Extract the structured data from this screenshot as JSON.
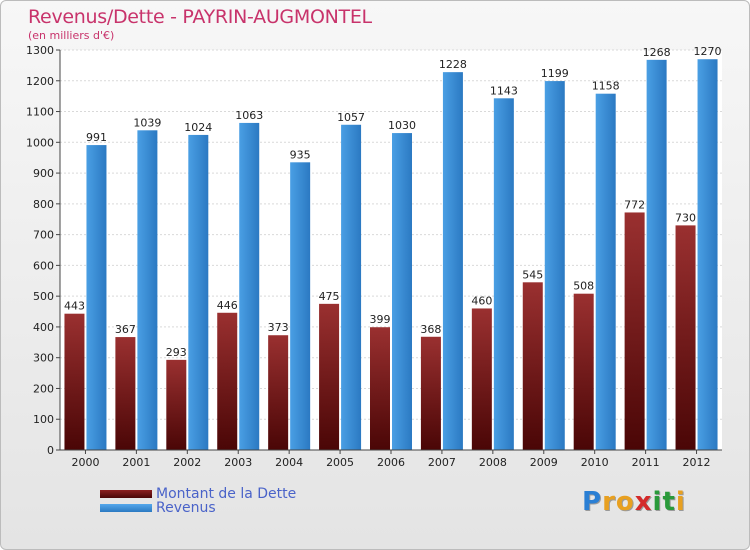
{
  "title": "Revenus/Dette - PAYRIN-AUGMONTEL",
  "subtitle": "(en milliers d'€)",
  "chart_data": {
    "type": "bar",
    "categories": [
      "2000",
      "2001",
      "2002",
      "2003",
      "2004",
      "2005",
      "2006",
      "2007",
      "2008",
      "2009",
      "2010",
      "2011",
      "2012"
    ],
    "series": [
      {
        "name": "Montant de la Dette",
        "values": [
          443,
          367,
          293,
          446,
          373,
          475,
          399,
          368,
          460,
          545,
          508,
          772,
          730
        ],
        "color": "#8b1e1e"
      },
      {
        "name": "Revenus",
        "values": [
          991,
          1039,
          1024,
          1063,
          935,
          1057,
          1030,
          1228,
          1143,
          1199,
          1158,
          1268,
          1270
        ],
        "color": "#3d8fd6"
      }
    ],
    "yticks": [
      0,
      100,
      200,
      300,
      400,
      500,
      600,
      700,
      800,
      900,
      1000,
      1100,
      1200,
      1300
    ],
    "ylim": [
      0,
      1300
    ],
    "grid": true,
    "legend_position": "bottom-left"
  },
  "legend": [
    {
      "label": "Montant de la Dette",
      "color": "#7a1414"
    },
    {
      "label": "Revenus",
      "color": "#3d8fd6"
    }
  ],
  "logo": {
    "letters": [
      "P",
      "r",
      "o",
      "x",
      "i",
      "t",
      "i"
    ],
    "colors": [
      "#2a7fd4",
      "#e8a020",
      "#e8a020",
      "#d42a2a",
      "#2a9a3a",
      "#2a9a3a",
      "#e8a020"
    ]
  }
}
